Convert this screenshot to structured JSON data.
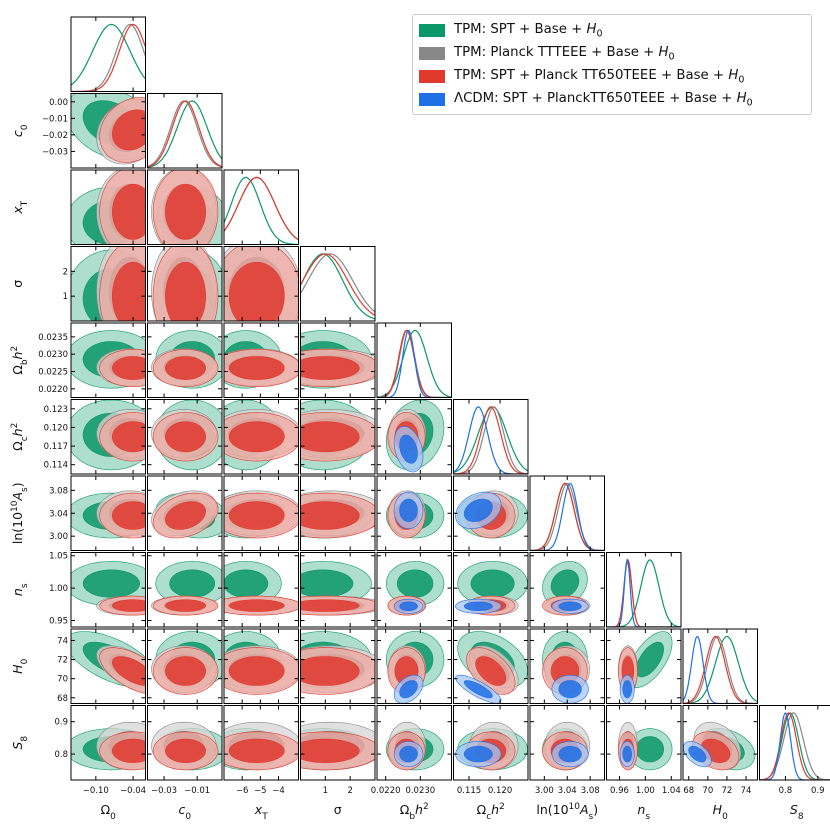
{
  "chart_data": {
    "type": "triangle-corner-plot",
    "legend": [
      {
        "label": "TPM: SPT + Base + H0",
        "color": "#0a9868"
      },
      {
        "label": "TPM: Planck TTTEEE + Base + H0",
        "color": "#888888"
      },
      {
        "label": "TPM: SPT + Planck TT650TEEE +  Base + H0",
        "color": "#e03a2f"
      },
      {
        "label": "ΛCDM: SPT + PlanckTT650TEEE + Base + H0",
        "color": "#1f6fe5"
      }
    ],
    "legend_placement": "top-right",
    "parameters": [
      {
        "label": "Ω_0",
        "min": -0.14,
        "max": -0.02,
        "ticks": [
          -0.1,
          -0.04
        ],
        "tick_labels": [
          "−0.10",
          "−0.04"
        ]
      },
      {
        "label": "c_0",
        "min": -0.04,
        "max": 0.005,
        "ticks": [
          -0.03,
          -0.01
        ],
        "tick_labels": [
          "−0.03",
          "−0.01"
        ],
        "y_ticks": [
          0.0,
          -0.01,
          -0.02,
          -0.03
        ],
        "y_tick_labels": [
          "0.00",
          "−0.01",
          "−0.02",
          "−0.03"
        ]
      },
      {
        "label": "x_T",
        "min": -7.0,
        "max": -2.9,
        "ticks": [
          -6,
          -5,
          -4
        ],
        "tick_labels": [
          "−6",
          "−5",
          "−4"
        ]
      },
      {
        "label": "σ",
        "min": 0.0,
        "max": 3.0,
        "ticks": [
          1,
          2
        ],
        "tick_labels": [
          "1",
          "2"
        ],
        "y_ticks": [
          1,
          2
        ],
        "y_tick_labels": [
          "1",
          "2"
        ]
      },
      {
        "label": "Ω_bh^2",
        "min": 0.02175,
        "max": 0.0239,
        "ticks": [
          0.022,
          0.023
        ],
        "tick_labels": [
          "0.0220",
          "0.0230"
        ],
        "y_ticks": [
          0.0235,
          0.023,
          0.0225,
          0.022
        ],
        "y_tick_labels": [
          "0.0235",
          "0.0230",
          "0.0225",
          "0.0220"
        ]
      },
      {
        "label": "Ω_ch^2",
        "min": 0.1125,
        "max": 0.1245,
        "ticks": [
          0.115,
          0.12
        ],
        "tick_labels": [
          "0.115",
          "0.120"
        ],
        "y_ticks": [
          0.123,
          0.12,
          0.117,
          0.114
        ],
        "y_tick_labels": [
          "0.123",
          "0.120",
          "0.117",
          "0.114"
        ]
      },
      {
        "label": "ln(10^{10}A_s)",
        "min": 2.975,
        "max": 3.105,
        "ticks": [
          3.0,
          3.04,
          3.08
        ],
        "tick_labels": [
          "3.00",
          "3.04",
          "3.08"
        ],
        "y_ticks": [
          3.08,
          3.04,
          3.0
        ],
        "y_tick_labels": [
          "3.08",
          "3.04",
          "3.00"
        ]
      },
      {
        "label": "n_s",
        "min": 0.94,
        "max": 1.055,
        "ticks": [
          0.96,
          1.0,
          1.04
        ],
        "tick_labels": [
          "0.96",
          "1.00",
          "1.04"
        ],
        "y_ticks": [
          1.05,
          1.0,
          0.95
        ],
        "y_tick_labels": [
          "1.05",
          "1.00",
          "0.95"
        ]
      },
      {
        "label": "H_0",
        "min": 67.4,
        "max": 75.2,
        "ticks": [
          68,
          70,
          72,
          74
        ],
        "tick_labels": [
          "68",
          "70",
          "72",
          "74"
        ],
        "y_ticks": [
          74,
          72,
          70,
          68
        ],
        "y_tick_labels": [
          "74",
          "72",
          "70",
          "68"
        ]
      },
      {
        "label": "S_8",
        "min": 0.72,
        "max": 0.95,
        "ticks": [
          0.8,
          0.9
        ],
        "tick_labels": [
          "0.8",
          "0.9"
        ],
        "y_ticks": [
          0.9,
          0.8
        ],
        "y_tick_labels": [
          "0.9",
          "0.8"
        ]
      }
    ],
    "series": [
      {
        "name": "TPM: SPT + Base + H0",
        "color": "#0a9868",
        "fill_outer": "#93d3bd",
        "fill_inner": "#0a9868",
        "means": [
          -0.075,
          -0.013,
          -5.8,
          0.9,
          0.02285,
          0.1188,
          3.036,
          1.007,
          72.0,
          0.815
        ],
        "sigmas": [
          0.03,
          0.009,
          0.8,
          0.8,
          0.00034,
          0.0023,
          0.016,
          0.014,
          1.2,
          0.026
        ],
        "correlations": [
          {
            "i": 0,
            "j": 1,
            "rho": -0.3
          },
          {
            "i": 4,
            "j": 5,
            "rho": 0.2
          },
          {
            "i": 0,
            "j": 8,
            "rho": -0.6
          },
          {
            "i": 5,
            "j": 8,
            "rho": -0.4
          },
          {
            "i": 7,
            "j": 8,
            "rho": 0.6
          },
          {
            "i": 6,
            "j": 7,
            "rho": 0.2
          },
          {
            "i": 1,
            "j": 6,
            "rho": -0.2
          },
          {
            "i": 8,
            "j": 9,
            "rho": -0.3
          }
        ]
      },
      {
        "name": "TPM: Planck TTTEEE + Base + H0",
        "color": "#888888",
        "fill_outer": "#d5d5d5",
        "fill_inner": "#8a8a8a",
        "means": [
          -0.045,
          -0.018,
          -5.2,
          1.2,
          0.02262,
          0.119,
          3.04,
          0.973,
          71.0,
          0.825
        ],
        "sigmas": [
          0.022,
          0.008,
          1.0,
          0.9,
          0.00022,
          0.0016,
          0.016,
          0.006,
          1.0,
          0.03
        ],
        "correlations": [
          {
            "i": 0,
            "j": 1,
            "rho": 0.2
          },
          {
            "i": 0,
            "j": 8,
            "rho": -0.6
          },
          {
            "i": 5,
            "j": 8,
            "rho": -0.5
          },
          {
            "i": 1,
            "j": 6,
            "rho": 0.3
          },
          {
            "i": 8,
            "j": 9,
            "rho": -0.3
          }
        ]
      },
      {
        "name": "TPM: SPT + Planck TT650TEEE +  Base + H0",
        "color": "#e03a2f",
        "fill_outer": "#f2a8a0",
        "fill_inner": "#e03a2f",
        "means": [
          -0.04,
          -0.017,
          -5.2,
          1.0,
          0.0226,
          0.1185,
          3.036,
          0.973,
          70.8,
          0.81
        ],
        "sigmas": [
          0.022,
          0.008,
          1.0,
          0.9,
          0.00022,
          0.0016,
          0.016,
          0.006,
          1.0,
          0.024
        ],
        "correlations": [
          {
            "i": 0,
            "j": 1,
            "rho": 0.2
          },
          {
            "i": 0,
            "j": 8,
            "rho": -0.6
          },
          {
            "i": 5,
            "j": 8,
            "rho": -0.5
          },
          {
            "i": 1,
            "j": 6,
            "rho": 0.3
          },
          {
            "i": 8,
            "j": 9,
            "rho": -0.3
          }
        ]
      },
      {
        "name": "ΛCDM: SPT + PlanckTT650TEEE + Base + H0",
        "color": "#1f6fe5",
        "fill_outer": "#a6c6f5",
        "fill_inner": "#1f6fe5",
        "means": [
          null,
          null,
          null,
          null,
          0.02266,
          0.1165,
          3.045,
          0.972,
          68.9,
          0.8
        ],
        "sigmas": [
          null,
          null,
          null,
          null,
          0.00017,
          0.0015,
          0.013,
          0.0045,
          0.6,
          0.016
        ],
        "correlations": [
          {
            "i": 5,
            "j": 8,
            "rho": -0.8
          },
          {
            "i": 4,
            "j": 5,
            "rho": -0.3
          },
          {
            "i": 5,
            "j": 6,
            "rho": 0.3
          },
          {
            "i": 4,
            "j": 8,
            "rho": 0.4
          },
          {
            "i": 8,
            "j": 9,
            "rho": -0.5
          }
        ]
      }
    ]
  }
}
